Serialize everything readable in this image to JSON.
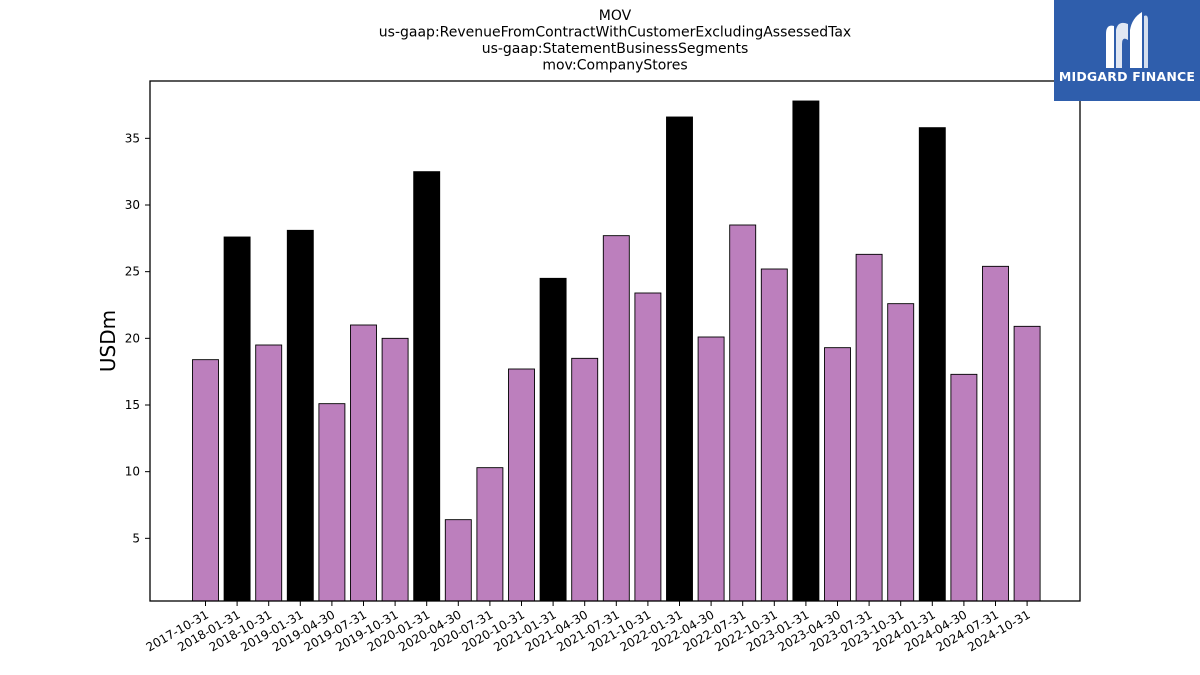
{
  "chart_data": {
    "type": "bar",
    "title_lines": [
      "MOV",
      "us-gaap:RevenueFromContractWithCustomerExcludingAssessedTax",
      "us-gaap:StatementBusinessSegments",
      "mov:CompanyStores"
    ],
    "ylabel": "USDm",
    "ylim": [
      0.3,
      39.3
    ],
    "yticks": [
      5,
      10,
      15,
      20,
      25,
      30,
      35
    ],
    "categories": [
      "2017-10-31",
      "2018-01-31",
      "2018-10-31",
      "2019-01-31",
      "2019-04-30",
      "2019-07-31",
      "2019-10-31",
      "2020-01-31",
      "2020-04-30",
      "2020-07-31",
      "2020-10-31",
      "2021-01-31",
      "2021-04-30",
      "2021-07-31",
      "2021-10-31",
      "2022-01-31",
      "2022-04-30",
      "2022-07-31",
      "2022-10-31",
      "2023-01-31",
      "2023-04-30",
      "2023-07-31",
      "2023-10-31",
      "2024-01-31",
      "2024-04-30",
      "2024-07-31",
      "2024-10-31"
    ],
    "values": [
      18.4,
      27.6,
      19.5,
      28.1,
      15.1,
      21.0,
      20.0,
      32.5,
      6.4,
      10.3,
      17.7,
      24.5,
      18.5,
      27.7,
      23.4,
      36.6,
      20.1,
      28.5,
      25.2,
      37.8,
      19.3,
      26.3,
      22.6,
      35.8,
      17.3,
      25.4,
      20.9
    ],
    "bar_colors": [
      "#bc7fbd",
      "#000000",
      "#bc7fbd",
      "#000000",
      "#bc7fbd",
      "#bc7fbd",
      "#bc7fbd",
      "#000000",
      "#bc7fbd",
      "#bc7fbd",
      "#bc7fbd",
      "#000000",
      "#bc7fbd",
      "#bc7fbd",
      "#bc7fbd",
      "#000000",
      "#bc7fbd",
      "#bc7fbd",
      "#bc7fbd",
      "#000000",
      "#bc7fbd",
      "#bc7fbd",
      "#bc7fbd",
      "#000000",
      "#bc7fbd",
      "#bc7fbd",
      "#bc7fbd"
    ],
    "grid": false
  },
  "logo": {
    "text": "MIDGARD FINANCE",
    "background": "#2f5eac"
  }
}
